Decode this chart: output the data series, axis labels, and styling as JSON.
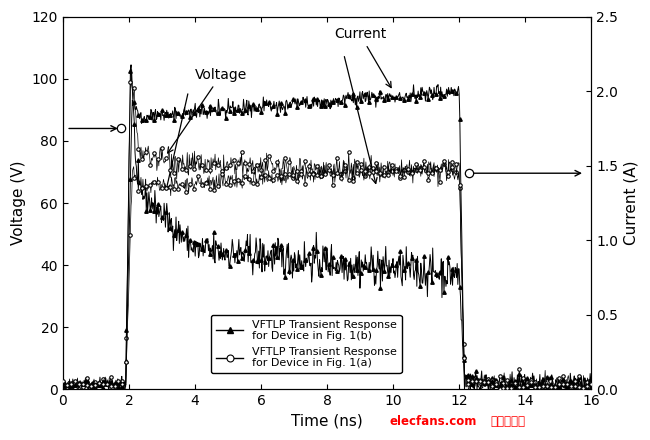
{
  "xlabel": "Time (ns)",
  "ylabel_left": "Voltage (V)",
  "ylabel_right": "Current (A)",
  "xlim": [
    0,
    16
  ],
  "ylim_left": [
    0,
    120
  ],
  "ylim_right": [
    0.0,
    2.5
  ],
  "xticks": [
    0,
    2,
    4,
    6,
    8,
    10,
    12,
    14,
    16
  ],
  "yticks_left": [
    0,
    20,
    40,
    60,
    80,
    100,
    120
  ],
  "yticks_right": [
    0.0,
    0.5,
    1.0,
    1.5,
    2.0,
    2.5
  ],
  "bg_color": "#ffffff",
  "noise_seed": 42,
  "n_points": 800
}
